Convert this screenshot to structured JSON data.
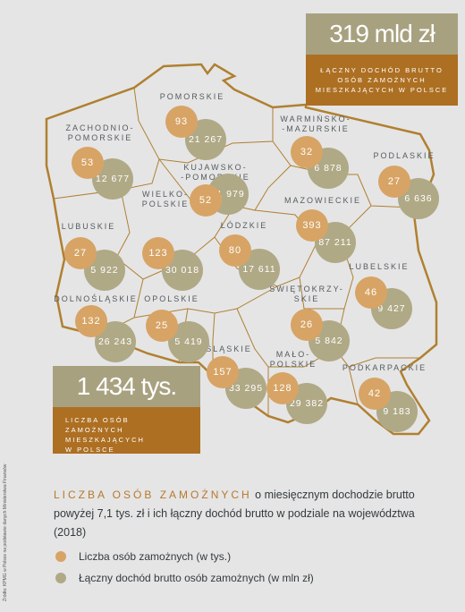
{
  "summary": {
    "total_income_value": "319 mld zł",
    "total_income_label": "Łączny dochód brutto osób zamożnych mieszkających w Polsce",
    "total_people_value": "1 434 tys.",
    "total_people_label": "Liczba osób zamożnych\nmieszkających\nw Polsce"
  },
  "colors": {
    "count": "#d7a465",
    "income": "#b0a986",
    "border": "#b08030",
    "accent": "#ad6f22",
    "background": "#e5e5e6"
  },
  "regions": [
    {
      "name": "POMORSKIE",
      "count": "93",
      "income": "21 267"
    },
    {
      "name": "ZACHODNIO-\nPOMORSKIE",
      "count": "53",
      "income": "12 677"
    },
    {
      "name": "WARMIŃSKO-\n-MAZURSKIE",
      "count": "32",
      "income": "6 878"
    },
    {
      "name": "PODLASKIE",
      "count": "27",
      "income": "6 636"
    },
    {
      "name": "KUJAWSKO-\n-POMORSKIE",
      "count": "52",
      "income": "11 979"
    },
    {
      "name": "MAZOWIECKIE",
      "count": "393",
      "income": "87 211"
    },
    {
      "name": "LUBUSKIE",
      "count": "27",
      "income": "5 922"
    },
    {
      "name": "WIELKO-\nPOLSKIE",
      "count": "123",
      "income": "30 018"
    },
    {
      "name": "ŁÓDZKIE",
      "count": "80",
      "income": "17 611"
    },
    {
      "name": "LUBELSKIE",
      "count": "46",
      "income": "9 427"
    },
    {
      "name": "DOLNOŚLĄSKIE",
      "count": "132",
      "income": "26 243"
    },
    {
      "name": "OPOLSKIE",
      "count": "25",
      "income": "5 419"
    },
    {
      "name": "ŚWIĘTOKRZY-\nSKIE",
      "count": "26",
      "income": "5 842"
    },
    {
      "name": "ŚLĄSKIE",
      "count": "157",
      "income": "33 295"
    },
    {
      "name": "MAŁO-\nPOLSKIE",
      "count": "128",
      "income": "29 382"
    },
    {
      "name": "PODKARPACKIE",
      "count": "42",
      "income": "9 183"
    }
  ],
  "caption": {
    "accent": "LICZBA OSÓB ZAMOŻNYCH",
    "rest": " o miesięcznym dochodzie brutto powyżej 7,1 tys. zł i ich łączny dochód brutto w podziale na województwa (2018)"
  },
  "legend": {
    "count_label": "Liczba osób zamożnych (w tys.)",
    "income_label": "Łączny dochód brutto osób zamożnych (w mln zł)"
  },
  "source": "Źródło: KPMG w Polsce na podstawie danych Ministerstwa Finansów"
}
